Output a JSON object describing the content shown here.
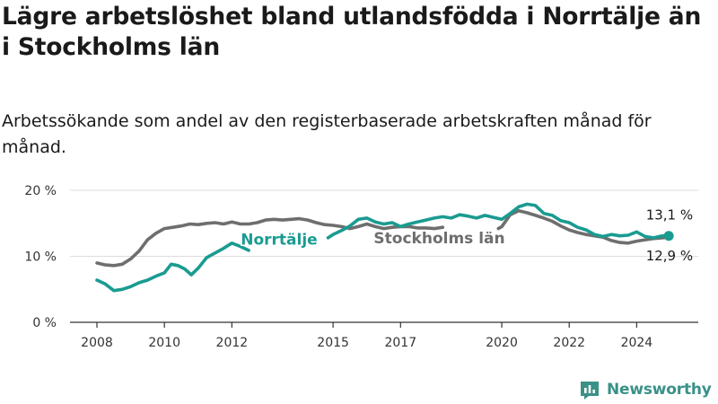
{
  "title": "Lägre arbetslöshet bland utlandsfödda i Norrtälje än i Stockholms län",
  "subtitle": "Arbetssökande som andel av den registerbaserade arbetskraften månad för månad.",
  "brand": {
    "name": "Newsworthy",
    "color": "#3a9188"
  },
  "chart_data": {
    "type": "line",
    "title": "Lägre arbetslöshet bland utlandsfödda i Norrtälje än i Stockholms län",
    "subtitle": "Arbetssökande som andel av den registerbaserade arbetskraften månad för månad.",
    "xlabel": "",
    "ylabel": "",
    "x_range": [
      2008.0,
      2025.0
    ],
    "ylim": [
      0,
      20
    ],
    "grid": true,
    "x_ticks": [
      {
        "value": 2008,
        "label": "2008"
      },
      {
        "value": 2010,
        "label": "2010"
      },
      {
        "value": 2012,
        "label": "2012"
      },
      {
        "value": 2015,
        "label": "2015"
      },
      {
        "value": 2017,
        "label": "2017"
      },
      {
        "value": 2020,
        "label": "2020"
      },
      {
        "value": 2022,
        "label": "2022"
      },
      {
        "value": 2024,
        "label": "2024"
      }
    ],
    "y_ticks": [
      {
        "value": 0,
        "label": "0 %"
      },
      {
        "value": 10,
        "label": "10 %"
      },
      {
        "value": 20,
        "label": "20 %"
      }
    ],
    "series": [
      {
        "name": "Stockholms län",
        "color": "#6e6e6e",
        "end_label": "12,9 %",
        "points": [
          [
            2008.0,
            9.0
          ],
          [
            2008.25,
            8.7
          ],
          [
            2008.5,
            8.6
          ],
          [
            2008.75,
            8.8
          ],
          [
            2009.0,
            9.6
          ],
          [
            2009.25,
            10.8
          ],
          [
            2009.5,
            12.5
          ],
          [
            2009.75,
            13.5
          ],
          [
            2010.0,
            14.2
          ],
          [
            2010.25,
            14.4
          ],
          [
            2010.5,
            14.6
          ],
          [
            2010.75,
            14.9
          ],
          [
            2011.0,
            14.8
          ],
          [
            2011.25,
            15.0
          ],
          [
            2011.5,
            15.1
          ],
          [
            2011.75,
            14.9
          ],
          [
            2012.0,
            15.2
          ],
          [
            2012.25,
            14.9
          ],
          [
            2012.5,
            14.9
          ],
          [
            2012.75,
            15.1
          ],
          [
            2013.0,
            15.5
          ],
          [
            2013.25,
            15.6
          ],
          [
            2013.5,
            15.5
          ],
          [
            2013.75,
            15.6
          ],
          [
            2014.0,
            15.7
          ],
          [
            2014.25,
            15.5
          ],
          [
            2014.5,
            15.1
          ],
          [
            2014.75,
            14.8
          ],
          [
            2015.0,
            14.7
          ],
          [
            2015.25,
            14.5
          ],
          [
            2015.5,
            14.2
          ],
          [
            2015.75,
            14.5
          ],
          [
            2016.0,
            14.9
          ],
          [
            2016.25,
            14.5
          ],
          [
            2016.5,
            14.2
          ],
          [
            2016.75,
            14.4
          ],
          [
            2017.0,
            14.5
          ],
          [
            2017.25,
            14.5
          ],
          [
            2017.5,
            14.3
          ],
          [
            2017.75,
            14.3
          ],
          [
            2018.0,
            14.2
          ],
          [
            2018.25,
            14.4
          ],
          [
            2019.9,
            14.2
          ],
          [
            2020.0,
            14.5
          ],
          [
            2020.25,
            16.3
          ],
          [
            2020.5,
            16.9
          ],
          [
            2020.75,
            16.6
          ],
          [
            2021.0,
            16.2
          ],
          [
            2021.25,
            15.8
          ],
          [
            2021.5,
            15.3
          ],
          [
            2021.75,
            14.6
          ],
          [
            2022.0,
            14.0
          ],
          [
            2022.25,
            13.6
          ],
          [
            2022.5,
            13.3
          ],
          [
            2022.75,
            13.1
          ],
          [
            2023.0,
            12.9
          ],
          [
            2023.25,
            12.4
          ],
          [
            2023.5,
            12.1
          ],
          [
            2023.75,
            12.0
          ],
          [
            2024.0,
            12.3
          ],
          [
            2024.25,
            12.5
          ],
          [
            2024.5,
            12.7
          ],
          [
            2024.75,
            12.8
          ],
          [
            2024.95,
            12.9
          ]
        ]
      },
      {
        "name": "Norrtälje",
        "color": "#1a9b91",
        "end_label": "13,1 %",
        "points": [
          [
            2008.0,
            6.4
          ],
          [
            2008.25,
            5.8
          ],
          [
            2008.5,
            4.8
          ],
          [
            2008.75,
            5.0
          ],
          [
            2009.0,
            5.4
          ],
          [
            2009.25,
            6.0
          ],
          [
            2009.5,
            6.4
          ],
          [
            2009.75,
            7.0
          ],
          [
            2010.0,
            7.5
          ],
          [
            2010.2,
            8.8
          ],
          [
            2010.4,
            8.6
          ],
          [
            2010.6,
            8.1
          ],
          [
            2010.8,
            7.2
          ],
          [
            2011.0,
            8.2
          ],
          [
            2011.25,
            9.8
          ],
          [
            2011.5,
            10.5
          ],
          [
            2011.75,
            11.2
          ],
          [
            2012.0,
            12.0
          ],
          [
            2012.25,
            11.5
          ],
          [
            2012.5,
            10.9
          ],
          [
            2014.85,
            12.8
          ],
          [
            2015.0,
            13.3
          ],
          [
            2015.25,
            13.9
          ],
          [
            2015.5,
            14.6
          ],
          [
            2015.75,
            15.6
          ],
          [
            2016.0,
            15.8
          ],
          [
            2016.25,
            15.2
          ],
          [
            2016.5,
            14.9
          ],
          [
            2016.75,
            15.1
          ],
          [
            2017.0,
            14.5
          ],
          [
            2017.25,
            14.9
          ],
          [
            2017.5,
            15.2
          ],
          [
            2017.75,
            15.5
          ],
          [
            2018.0,
            15.8
          ],
          [
            2018.25,
            16.0
          ],
          [
            2018.5,
            15.8
          ],
          [
            2018.75,
            16.3
          ],
          [
            2019.0,
            16.1
          ],
          [
            2019.25,
            15.8
          ],
          [
            2019.5,
            16.2
          ],
          [
            2019.75,
            15.9
          ],
          [
            2020.0,
            15.6
          ],
          [
            2020.25,
            16.5
          ],
          [
            2020.5,
            17.5
          ],
          [
            2020.75,
            17.9
          ],
          [
            2021.0,
            17.7
          ],
          [
            2021.25,
            16.5
          ],
          [
            2021.5,
            16.2
          ],
          [
            2021.75,
            15.4
          ],
          [
            2022.0,
            15.1
          ],
          [
            2022.25,
            14.4
          ],
          [
            2022.5,
            14.0
          ],
          [
            2022.75,
            13.3
          ],
          [
            2023.0,
            13.0
          ],
          [
            2023.25,
            13.3
          ],
          [
            2023.5,
            13.1
          ],
          [
            2023.75,
            13.2
          ],
          [
            2024.0,
            13.7
          ],
          [
            2024.25,
            13.0
          ],
          [
            2024.5,
            12.8
          ],
          [
            2024.75,
            13.1
          ],
          [
            2024.95,
            13.1
          ]
        ]
      }
    ]
  }
}
